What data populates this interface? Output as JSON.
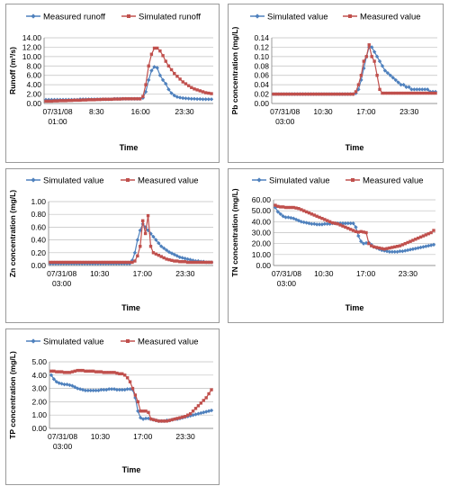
{
  "chart_data": [
    {
      "type": "line",
      "ylabel": "Runoff (m³/s)",
      "xlabel": "Time",
      "ylim": [
        0,
        14
      ],
      "yticks": [
        "0.00",
        "2.00",
        "4.00",
        "6.00",
        "8.00",
        "10.00",
        "12.00",
        "14.00"
      ],
      "xticks": [
        {
          "line1": "07/31/08",
          "line2": "01:00"
        },
        {
          "line1": "8:30",
          "line2": ""
        },
        {
          "line1": "16:00",
          "line2": ""
        },
        {
          "line1": "23:30",
          "line2": ""
        }
      ],
      "legend_position": "top",
      "series": [
        {
          "name": "Measured runoff",
          "color": "#4f81bd",
          "marker": "diamond",
          "values": [
            0.8,
            0.8,
            0.8,
            0.8,
            0.8,
            0.8,
            0.8,
            0.8,
            0.8,
            0.8,
            0.8,
            0.8,
            0.9,
            0.9,
            0.9,
            0.9,
            0.9,
            0.9,
            0.9,
            0.9,
            0.9,
            0.9,
            0.9,
            0.9,
            1.0,
            1.0,
            1.0,
            1.0,
            1.0,
            1.0,
            1.0,
            1.0,
            1.0,
            1.0,
            1.2,
            2.5,
            5.0,
            7.0,
            7.8,
            7.6,
            6.0,
            5.0,
            4.2,
            3.0,
            2.2,
            1.7,
            1.4,
            1.25,
            1.15,
            1.1,
            1.05,
            1.0,
            1.0,
            0.95,
            0.95,
            0.9,
            0.9,
            0.9,
            0.9
          ]
        },
        {
          "name": "Simulated runoff",
          "color": "#c0504d",
          "marker": "square",
          "values": [
            0.5,
            0.5,
            0.5,
            0.55,
            0.55,
            0.6,
            0.6,
            0.6,
            0.65,
            0.65,
            0.7,
            0.7,
            0.7,
            0.75,
            0.75,
            0.8,
            0.8,
            0.8,
            0.85,
            0.85,
            0.9,
            0.9,
            0.9,
            0.9,
            0.95,
            0.95,
            0.95,
            1.0,
            1.0,
            1.0,
            1.0,
            1.0,
            1.0,
            1.0,
            1.5,
            4.0,
            8.0,
            10.5,
            11.8,
            11.8,
            11.2,
            10.2,
            9.0,
            8.0,
            7.2,
            6.4,
            5.8,
            5.2,
            4.6,
            4.2,
            3.8,
            3.4,
            3.1,
            2.9,
            2.7,
            2.5,
            2.3,
            2.2,
            2.1
          ]
        }
      ]
    },
    {
      "type": "line",
      "ylabel": "Pb  concentration (mg/L)",
      "xlabel": "Time",
      "ylim": [
        0,
        0.14
      ],
      "yticks": [
        "0.00",
        "0.02",
        "0.04",
        "0.06",
        "0.08",
        "0.10",
        "0.12",
        "0.14"
      ],
      "xticks": [
        {
          "line1": "07/31/08",
          "line2": "03:00"
        },
        {
          "line1": "10:30",
          "line2": ""
        },
        {
          "line1": "17:00",
          "line2": ""
        },
        {
          "line1": "23:30",
          "line2": ""
        }
      ],
      "legend_position": "top",
      "series": [
        {
          "name": "Simulated value",
          "color": "#4f81bd",
          "marker": "diamond",
          "values": [
            0.02,
            0.02,
            0.02,
            0.02,
            0.02,
            0.02,
            0.02,
            0.02,
            0.02,
            0.02,
            0.02,
            0.02,
            0.02,
            0.02,
            0.02,
            0.02,
            0.02,
            0.02,
            0.02,
            0.02,
            0.02,
            0.02,
            0.02,
            0.02,
            0.02,
            0.02,
            0.02,
            0.02,
            0.02,
            0.02,
            0.02,
            0.022,
            0.03,
            0.05,
            0.075,
            0.1,
            0.12,
            0.12,
            0.11,
            0.1,
            0.09,
            0.08,
            0.07,
            0.065,
            0.06,
            0.055,
            0.05,
            0.045,
            0.04,
            0.04,
            0.035,
            0.035,
            0.03,
            0.03,
            0.03,
            0.03,
            0.03,
            0.03,
            0.03,
            0.025,
            0.025,
            0.025
          ]
        },
        {
          "name": "Measured value",
          "color": "#c0504d",
          "marker": "square",
          "values": [
            0.02,
            0.02,
            0.02,
            0.02,
            0.02,
            0.02,
            0.02,
            0.02,
            0.02,
            0.02,
            0.02,
            0.02,
            0.02,
            0.02,
            0.02,
            0.02,
            0.02,
            0.02,
            0.02,
            0.02,
            0.02,
            0.02,
            0.02,
            0.02,
            0.02,
            0.02,
            0.02,
            0.02,
            0.02,
            0.02,
            0.02,
            0.025,
            0.04,
            0.06,
            0.09,
            0.1,
            0.125,
            0.1,
            0.09,
            0.06,
            0.03,
            0.022,
            0.022,
            0.022,
            0.022,
            0.022,
            0.022,
            0.022,
            0.022,
            0.022,
            0.022,
            0.022,
            0.022,
            0.022,
            0.022,
            0.022,
            0.022,
            0.022,
            0.022,
            0.022,
            0.022,
            0.022
          ]
        }
      ]
    },
    {
      "type": "line",
      "ylabel": "Zn  concentration (mg/L)",
      "xlabel": "Time",
      "ylim": [
        0,
        1.0
      ],
      "yticks": [
        "0.00",
        "0.20",
        "0.40",
        "0.60",
        "0.80",
        "1.00"
      ],
      "xticks": [
        {
          "line1": "07/31/08",
          "line2": "03:00"
        },
        {
          "line1": "10:30",
          "line2": ""
        },
        {
          "line1": "17:00",
          "line2": ""
        },
        {
          "line1": "23:30",
          "line2": ""
        }
      ],
      "legend_position": "top",
      "series": [
        {
          "name": "Simulated value",
          "color": "#4f81bd",
          "marker": "diamond",
          "values": [
            0.03,
            0.03,
            0.03,
            0.03,
            0.03,
            0.03,
            0.03,
            0.03,
            0.03,
            0.03,
            0.03,
            0.03,
            0.03,
            0.03,
            0.03,
            0.03,
            0.03,
            0.03,
            0.03,
            0.03,
            0.03,
            0.03,
            0.03,
            0.03,
            0.03,
            0.03,
            0.03,
            0.03,
            0.03,
            0.03,
            0.03,
            0.08,
            0.2,
            0.4,
            0.55,
            0.65,
            0.6,
            0.55,
            0.5,
            0.45,
            0.4,
            0.35,
            0.3,
            0.27,
            0.24,
            0.21,
            0.19,
            0.17,
            0.15,
            0.13,
            0.12,
            0.11,
            0.1,
            0.09,
            0.08,
            0.07,
            0.07,
            0.06,
            0.06,
            0.05,
            0.05,
            0.05
          ]
        },
        {
          "name": "Measured value",
          "color": "#c0504d",
          "marker": "square",
          "values": [
            0.05,
            0.05,
            0.05,
            0.05,
            0.05,
            0.05,
            0.05,
            0.05,
            0.05,
            0.05,
            0.05,
            0.05,
            0.05,
            0.05,
            0.05,
            0.05,
            0.05,
            0.05,
            0.05,
            0.05,
            0.05,
            0.05,
            0.05,
            0.05,
            0.05,
            0.05,
            0.05,
            0.05,
            0.05,
            0.05,
            0.05,
            0.05,
            0.07,
            0.15,
            0.3,
            0.7,
            0.5,
            0.78,
            0.3,
            0.2,
            0.18,
            0.16,
            0.14,
            0.12,
            0.1,
            0.09,
            0.08,
            0.07,
            0.07,
            0.06,
            0.06,
            0.06,
            0.05,
            0.05,
            0.05,
            0.05,
            0.05,
            0.05,
            0.05,
            0.05,
            0.05,
            0.05
          ]
        }
      ]
    },
    {
      "type": "line",
      "ylabel": "TN  concentration (mg/L)",
      "xlabel": "Time",
      "ylim": [
        0,
        60
      ],
      "yticks": [
        "0.00",
        "10.00",
        "20.00",
        "30.00",
        "40.00",
        "50.00",
        "60.00"
      ],
      "xticks": [
        {
          "line1": "07/31/08",
          "line2": "03:00"
        },
        {
          "line1": "10:30",
          "line2": ""
        },
        {
          "line1": "17:00",
          "line2": ""
        },
        {
          "line1": "23:30",
          "line2": ""
        }
      ],
      "legend_position": "top",
      "series": [
        {
          "name": "Simulated value",
          "color": "#4f81bd",
          "marker": "diamond",
          "values": [
            53,
            49,
            47,
            45,
            44,
            44,
            43.5,
            43,
            42,
            41,
            40,
            39.5,
            39,
            38.5,
            38,
            38,
            37.5,
            37.5,
            37.5,
            38,
            38,
            38,
            38.5,
            38.5,
            38.5,
            38.5,
            38.5,
            38.5,
            38.5,
            38.5,
            38.5,
            35,
            27,
            22,
            20,
            20.5,
            21,
            19,
            17,
            16,
            15,
            14,
            13.5,
            13,
            12.5,
            12.5,
            12.5,
            12.5,
            13,
            13,
            13.5,
            14,
            14.5,
            15,
            15.5,
            16,
            16.5,
            17,
            17.5,
            18,
            18.5,
            19
          ]
        },
        {
          "name": "Measured value",
          "color": "#c0504d",
          "marker": "square",
          "values": [
            55,
            54,
            53.5,
            53.5,
            53,
            53,
            53,
            53,
            52.5,
            52,
            51,
            50,
            49,
            48,
            47,
            46,
            45,
            44,
            43,
            42,
            41,
            40,
            39,
            38.5,
            38,
            37,
            36,
            35,
            34,
            33,
            32,
            31,
            30.5,
            31,
            30.5,
            30,
            20,
            18,
            17,
            16.5,
            16,
            15.5,
            15,
            15.5,
            16,
            16.5,
            17,
            17.5,
            18,
            19,
            20,
            21,
            22,
            23,
            24,
            25,
            26,
            27,
            28,
            29,
            30,
            32
          ]
        }
      ]
    },
    {
      "type": "line",
      "ylabel": "TP  concentration (mg/L)",
      "xlabel": "Time",
      "ylim": [
        0,
        5
      ],
      "yticks": [
        "0.00",
        "1.00",
        "2.00",
        "3.00",
        "4.00",
        "5.00"
      ],
      "xticks": [
        {
          "line1": "07/31/08",
          "line2": "03:00"
        },
        {
          "line1": "10:30",
          "line2": ""
        },
        {
          "line1": "17:00",
          "line2": ""
        },
        {
          "line1": "23:30",
          "line2": ""
        }
      ],
      "legend_position": "top",
      "series": [
        {
          "name": "Simulated value",
          "color": "#4f81bd",
          "marker": "diamond",
          "values": [
            4.0,
            3.7,
            3.5,
            3.4,
            3.35,
            3.3,
            3.3,
            3.25,
            3.2,
            3.1,
            3.0,
            2.95,
            2.9,
            2.85,
            2.85,
            2.85,
            2.85,
            2.85,
            2.85,
            2.9,
            2.9,
            2.9,
            2.95,
            2.95,
            2.95,
            2.9,
            2.9,
            2.9,
            2.9,
            2.95,
            2.95,
            2.9,
            2.3,
            1.3,
            0.8,
            0.7,
            0.75,
            0.75,
            0.7,
            0.65,
            0.6,
            0.55,
            0.55,
            0.55,
            0.6,
            0.6,
            0.65,
            0.7,
            0.7,
            0.75,
            0.8,
            0.85,
            0.9,
            0.95,
            1.0,
            1.05,
            1.1,
            1.15,
            1.2,
            1.25,
            1.3,
            1.35
          ]
        },
        {
          "name": "Measured value",
          "color": "#c0504d",
          "marker": "square",
          "values": [
            4.3,
            4.3,
            4.25,
            4.25,
            4.25,
            4.2,
            4.2,
            4.2,
            4.25,
            4.3,
            4.35,
            4.35,
            4.35,
            4.3,
            4.3,
            4.3,
            4.3,
            4.25,
            4.25,
            4.25,
            4.2,
            4.2,
            4.2,
            4.2,
            4.2,
            4.15,
            4.1,
            4.1,
            4.0,
            3.8,
            3.5,
            3.0,
            2.5,
            2.0,
            1.3,
            1.3,
            1.3,
            1.2,
            0.7,
            0.65,
            0.6,
            0.55,
            0.55,
            0.55,
            0.55,
            0.6,
            0.65,
            0.7,
            0.75,
            0.8,
            0.85,
            0.9,
            1.0,
            1.1,
            1.3,
            1.5,
            1.7,
            1.9,
            2.1,
            2.3,
            2.6,
            2.9
          ]
        }
      ]
    }
  ]
}
